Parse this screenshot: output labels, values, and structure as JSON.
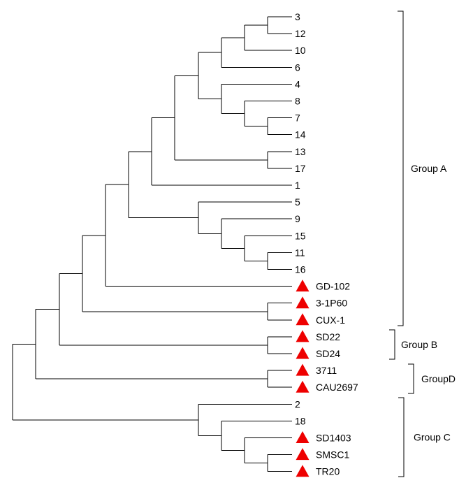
{
  "figure": {
    "type": "dendrogram",
    "leaves": [
      {
        "label": "3",
        "marker": false
      },
      {
        "label": "12",
        "marker": false
      },
      {
        "label": "10",
        "marker": false
      },
      {
        "label": "6",
        "marker": false
      },
      {
        "label": "4",
        "marker": false
      },
      {
        "label": "8",
        "marker": false
      },
      {
        "label": "7",
        "marker": false
      },
      {
        "label": "14",
        "marker": false
      },
      {
        "label": "13",
        "marker": false
      },
      {
        "label": "17",
        "marker": false
      },
      {
        "label": "1",
        "marker": false
      },
      {
        "label": "5",
        "marker": false
      },
      {
        "label": "9",
        "marker": false
      },
      {
        "label": "15",
        "marker": false
      },
      {
        "label": "11",
        "marker": false
      },
      {
        "label": "16",
        "marker": false
      },
      {
        "label": "GD-102",
        "marker": true
      },
      {
        "label": "3-1P60",
        "marker": true
      },
      {
        "label": "CUX-1",
        "marker": true
      },
      {
        "label": "SD22",
        "marker": true
      },
      {
        "label": "SD24",
        "marker": true
      },
      {
        "label": "3711",
        "marker": true
      },
      {
        "label": "CAU2697",
        "marker": true
      },
      {
        "label": "2",
        "marker": false
      },
      {
        "label": "18",
        "marker": false
      },
      {
        "label": "SD1403",
        "marker": true
      },
      {
        "label": "SMSC1",
        "marker": true
      },
      {
        "label": "TR20",
        "marker": true
      }
    ],
    "groups": [
      {
        "label": "Group A",
        "first_leaf": 0,
        "last_leaf": 18
      },
      {
        "label": "Group B",
        "first_leaf": 19,
        "last_leaf": 20
      },
      {
        "label": "GroupD",
        "first_leaf": 21,
        "last_leaf": 22
      },
      {
        "label": "Group C",
        "first_leaf": 23,
        "last_leaf": 27
      }
    ],
    "colors": {
      "line": "#000000",
      "marker": "#ee0000",
      "text": "#000000",
      "background": "#ffffff"
    },
    "marker_icon": "red-triangle-icon"
  }
}
